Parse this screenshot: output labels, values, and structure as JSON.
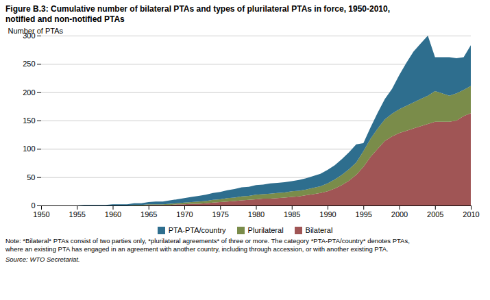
{
  "chart_data": {
    "type": "area",
    "stacked": true,
    "title": "Figure B.3: Cumulative number of bilateral PTAs and types of plurilateral PTAs in force, 1950-2010,",
    "subtitle": "notified and non-notified PTAs",
    "ylabel": "Number of PTAs",
    "x": [
      1950,
      1951,
      1952,
      1953,
      1954,
      1955,
      1956,
      1957,
      1958,
      1959,
      1960,
      1961,
      1962,
      1963,
      1964,
      1965,
      1966,
      1967,
      1968,
      1969,
      1970,
      1971,
      1972,
      1973,
      1974,
      1975,
      1976,
      1977,
      1978,
      1979,
      1980,
      1981,
      1982,
      1983,
      1984,
      1985,
      1986,
      1987,
      1988,
      1989,
      1990,
      1991,
      1992,
      1993,
      1994,
      1995,
      1996,
      1997,
      1998,
      1999,
      2000,
      2001,
      2002,
      2003,
      2004,
      2005,
      2006,
      2007,
      2008,
      2009,
      2010
    ],
    "series": [
      {
        "name": "PTA-PTA/country",
        "color": "#2e6e8e",
        "values": [
          0,
          0,
          0,
          0,
          0,
          0,
          1,
          1,
          1,
          1,
          2,
          2,
          2,
          3,
          3,
          4,
          5,
          5,
          6,
          7,
          8,
          9,
          10,
          11,
          12,
          13,
          14,
          15,
          16,
          16,
          17,
          17,
          18,
          18,
          18,
          18,
          19,
          20,
          21,
          22,
          24,
          25,
          28,
          30,
          32,
          14,
          20,
          28,
          36,
          44,
          60,
          76,
          90,
          98,
          106,
          60,
          64,
          68,
          62,
          58,
          72
        ]
      },
      {
        "name": "Plurilateral",
        "color": "#7a8c4a",
        "values": [
          0,
          0,
          0,
          0,
          0,
          0,
          0,
          0,
          0,
          0,
          0,
          0,
          0,
          1,
          1,
          1,
          1,
          1,
          2,
          2,
          3,
          3,
          4,
          4,
          5,
          5,
          6,
          6,
          7,
          7,
          8,
          8,
          9,
          9,
          9,
          10,
          10,
          10,
          11,
          12,
          14,
          16,
          18,
          20,
          22,
          28,
          32,
          36,
          38,
          40,
          42,
          44,
          46,
          48,
          50,
          54,
          50,
          46,
          48,
          46,
          48
        ]
      },
      {
        "name": "Bilateral",
        "color": "#a05555",
        "values": [
          0,
          0,
          0,
          0,
          0,
          0,
          0,
          0,
          0,
          0,
          0,
          0,
          0,
          0,
          0,
          1,
          1,
          1,
          1,
          2,
          2,
          3,
          3,
          4,
          5,
          6,
          7,
          8,
          9,
          10,
          11,
          12,
          12,
          13,
          14,
          15,
          16,
          18,
          20,
          22,
          25,
          30,
          36,
          44,
          54,
          68,
          86,
          100,
          114,
          122,
          128,
          132,
          136,
          140,
          144,
          148,
          148,
          148,
          150,
          158,
          163
        ]
      }
    ],
    "xlim": [
      1950,
      2010
    ],
    "xticks": [
      1950,
      1955,
      1960,
      1965,
      1970,
      1975,
      1980,
      1985,
      1990,
      1995,
      2000,
      2005,
      2010
    ],
    "ylim": [
      0,
      300
    ],
    "yticks": [
      0,
      50,
      100,
      150,
      200,
      250,
      300
    ],
    "grid": true,
    "legend": "bottom",
    "annotations": [
      "Note: *Bilateral* PTAs consist of two parties only, *plurilateral agreements* of three or more. The category *PTA-PTA/country* denotes PTAs,",
      "where an existing PTA has engaged in an agreement with another country, including through accession, or with another existing PTA.",
      "Source: WTO Secretariat."
    ]
  }
}
